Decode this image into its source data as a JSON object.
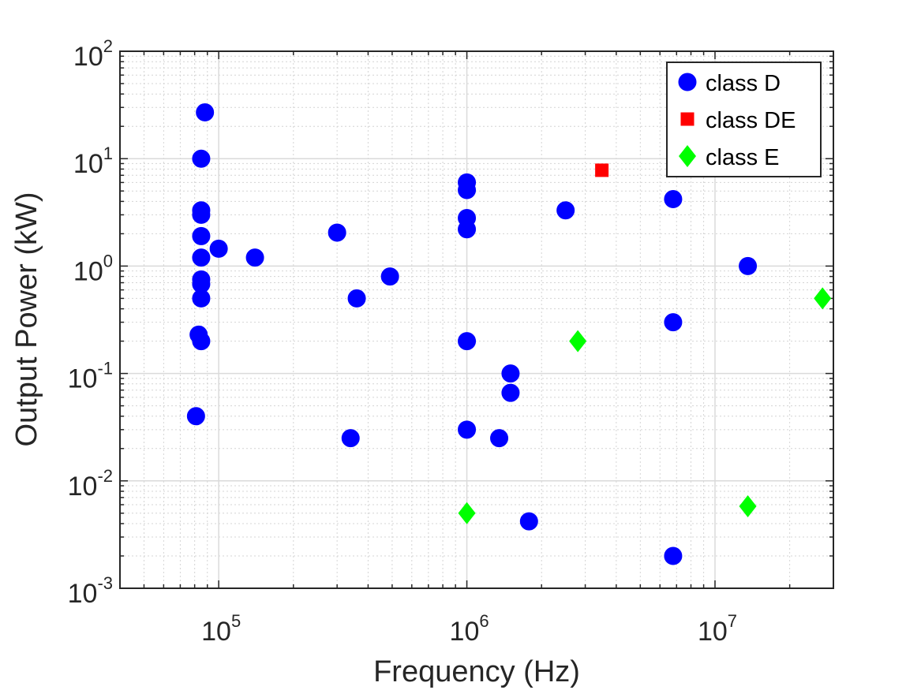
{
  "chart_data": {
    "type": "scatter",
    "title": "",
    "xlabel": "Frequency (Hz)",
    "ylabel": "Output Power (kW)",
    "xscale": "log",
    "yscale": "log",
    "xlim": [
      40000,
      30000000
    ],
    "ylim": [
      0.001,
      100
    ],
    "grid": true,
    "minor_grid": true,
    "legend_position": "top-right",
    "x_ticks": [
      {
        "value": 100000,
        "base": "10",
        "exp": "5"
      },
      {
        "value": 1000000,
        "base": "10",
        "exp": "6"
      },
      {
        "value": 10000000,
        "base": "10",
        "exp": "7"
      }
    ],
    "y_ticks": [
      {
        "value": 0.001,
        "base": "10",
        "exp": "-3"
      },
      {
        "value": 0.01,
        "base": "10",
        "exp": "-2"
      },
      {
        "value": 0.1,
        "base": "10",
        "exp": "-1"
      },
      {
        "value": 1,
        "base": "10",
        "exp": "0"
      },
      {
        "value": 10,
        "base": "10",
        "exp": "1"
      },
      {
        "value": 100,
        "base": "10",
        "exp": "2"
      }
    ],
    "series": [
      {
        "name": "class D",
        "marker": "circle",
        "color": "#0000ff",
        "points": [
          [
            88000,
            27
          ],
          [
            85000,
            10
          ],
          [
            85000,
            3.3
          ],
          [
            85000,
            3.0
          ],
          [
            85000,
            1.9
          ],
          [
            85000,
            1.2
          ],
          [
            85000,
            0.75
          ],
          [
            85000,
            0.68
          ],
          [
            85000,
            0.5
          ],
          [
            83000,
            0.23
          ],
          [
            85000,
            0.2
          ],
          [
            81000,
            0.04
          ],
          [
            100000,
            1.45
          ],
          [
            140000,
            1.2
          ],
          [
            300000,
            2.05
          ],
          [
            360000,
            0.5
          ],
          [
            340000,
            0.025
          ],
          [
            490000,
            0.8
          ],
          [
            1000000,
            6.0
          ],
          [
            1000000,
            5.1
          ],
          [
            1000000,
            2.8
          ],
          [
            1000000,
            2.2
          ],
          [
            1000000,
            0.2
          ],
          [
            1000000,
            0.03
          ],
          [
            1350000,
            0.025
          ],
          [
            1500000,
            0.1
          ],
          [
            1500000,
            0.066
          ],
          [
            1780000,
            0.0042
          ],
          [
            2500000,
            3.3
          ],
          [
            6780000,
            4.2
          ],
          [
            6780000,
            0.3
          ],
          [
            6780000,
            0.002
          ],
          [
            13560000,
            1.0
          ]
        ]
      },
      {
        "name": "class DE",
        "marker": "square",
        "color": "#ff0000",
        "points": [
          [
            3500000,
            7.8
          ]
        ]
      },
      {
        "name": "class E",
        "marker": "diamond",
        "color": "#00ff00",
        "points": [
          [
            1000000,
            0.005
          ],
          [
            2800000,
            0.2
          ],
          [
            13560000,
            0.0058
          ],
          [
            27120000,
            0.5
          ]
        ]
      }
    ]
  }
}
